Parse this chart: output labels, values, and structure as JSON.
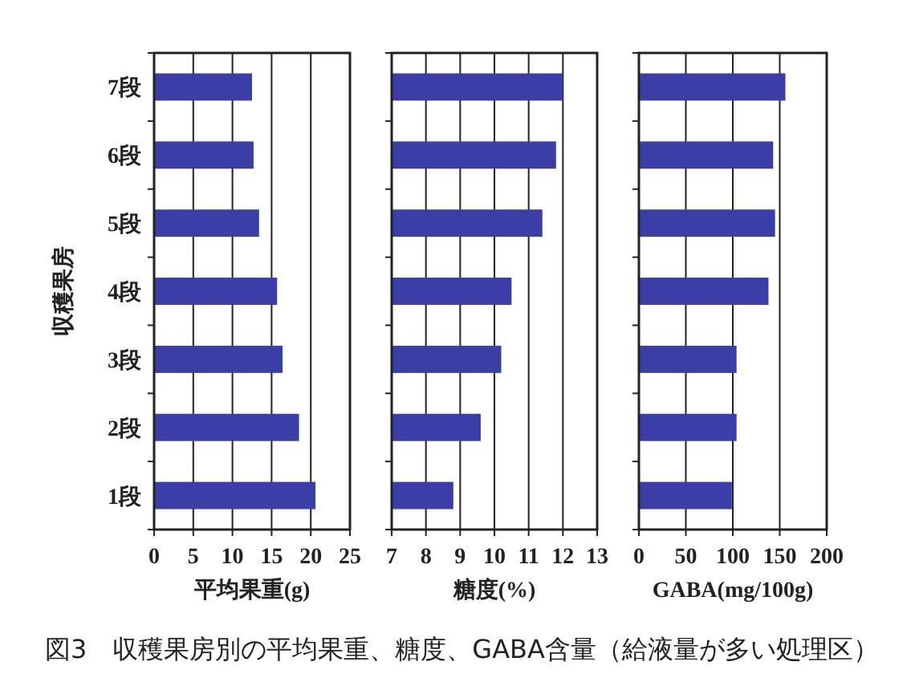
{
  "chart_data": [
    {
      "type": "bar",
      "orientation": "horizontal",
      "categories": [
        "7段",
        "6段",
        "5段",
        "4段",
        "3段",
        "2段",
        "1段"
      ],
      "values": [
        12.5,
        12.7,
        13.4,
        15.7,
        16.4,
        18.5,
        20.6
      ],
      "color": "#3a3ea6",
      "xlim": [
        0,
        25
      ],
      "xticks": [
        0,
        5,
        10,
        15,
        20,
        25
      ],
      "grid": "x",
      "xlabel": "平均果重(g)",
      "ylabel": "収穫果房",
      "annotations": [
        "図3　収穫果房別の平均果重、糖度、GABA含量（給液量が多い処理区）"
      ]
    },
    {
      "type": "bar",
      "orientation": "horizontal",
      "categories": [
        null,
        null,
        null,
        null,
        null,
        null,
        null
      ],
      "values": [
        12.0,
        11.8,
        11.4,
        10.5,
        10.2,
        9.6,
        8.8
      ],
      "color": "#3a3ea6",
      "xlim": [
        7,
        13
      ],
      "xticks": [
        7,
        8,
        9,
        10,
        11,
        12,
        13
      ],
      "grid": "x",
      "xlabel": "糖度(%)"
    },
    {
      "type": "bar",
      "orientation": "horizontal",
      "categories": [
        null,
        null,
        null,
        null,
        null,
        null,
        null
      ],
      "values": [
        156,
        143,
        145,
        138,
        104,
        104,
        99
      ],
      "color": "#3a3ea6",
      "xlim": [
        0,
        200
      ],
      "xticks": [
        0,
        50,
        100,
        150,
        200
      ],
      "grid": "x",
      "xlabel": "GABA(mg/100g)"
    }
  ]
}
